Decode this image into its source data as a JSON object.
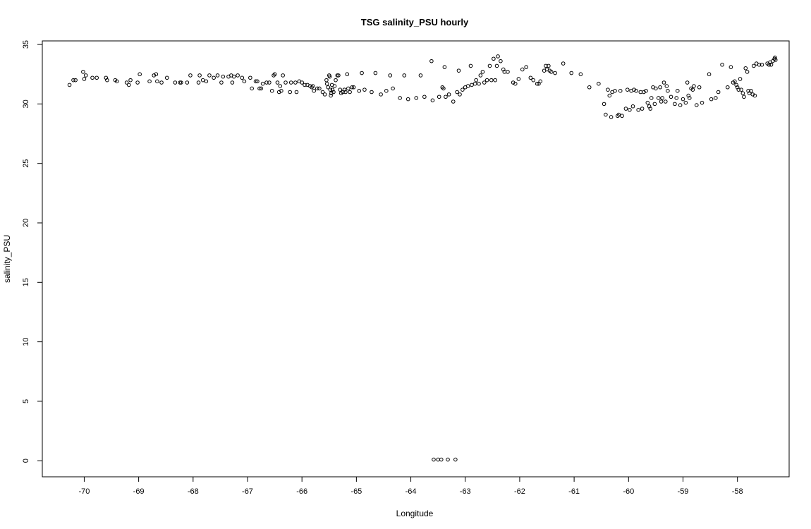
{
  "chart_data": {
    "type": "scatter",
    "title": "TSG salinity_PSU hourly",
    "xlabel": "Longitude",
    "ylabel": "salinity_PSU",
    "xlim": [
      -70.77,
      -57.05
    ],
    "ylim": [
      -1.35,
      35.3
    ],
    "xticks": [
      -70,
      -69,
      -68,
      -67,
      -66,
      -65,
      -64,
      -63,
      -62,
      -61,
      -60,
      -59,
      -58
    ],
    "xtick_labels": [
      "-70",
      "-69",
      "-68",
      "-67",
      "-66",
      "-65",
      "-64",
      "-63",
      "-62",
      "-61",
      "-60",
      "-59",
      "-58"
    ],
    "yticks": [
      0,
      5,
      10,
      15,
      20,
      25,
      30,
      35
    ],
    "ytick_labels": [
      "0",
      "5",
      "10",
      "15",
      "20",
      "25",
      "30",
      "35"
    ],
    "grid": false,
    "marker": "open-circle",
    "marker_color": "#000000",
    "points": [
      [
        -70.27,
        31.6
      ],
      [
        -70.2,
        32.0
      ],
      [
        -70.16,
        32.0
      ],
      [
        -70.02,
        32.7
      ],
      [
        -70.0,
        32.1
      ],
      [
        -69.97,
        32.4
      ],
      [
        -69.85,
        32.2
      ],
      [
        -69.77,
        32.2
      ],
      [
        -69.6,
        32.2
      ],
      [
        -69.58,
        32.0
      ],
      [
        -69.43,
        32.0
      ],
      [
        -69.4,
        31.9
      ],
      [
        -69.22,
        31.8
      ],
      [
        -69.18,
        31.6
      ],
      [
        -69.15,
        32.0
      ],
      [
        -69.02,
        31.8
      ],
      [
        -68.98,
        32.5
      ],
      [
        -68.8,
        31.9
      ],
      [
        -68.72,
        32.4
      ],
      [
        -68.68,
        32.5
      ],
      [
        -68.66,
        31.9
      ],
      [
        -68.58,
        31.8
      ],
      [
        -68.48,
        32.2
      ],
      [
        -68.33,
        31.8
      ],
      [
        -68.24,
        31.8
      ],
      [
        -68.22,
        31.8
      ],
      [
        -68.11,
        31.8
      ],
      [
        -68.05,
        32.4
      ],
      [
        -67.9,
        31.8
      ],
      [
        -67.88,
        32.4
      ],
      [
        -67.82,
        32.0
      ],
      [
        -67.76,
        31.9
      ],
      [
        -67.7,
        32.4
      ],
      [
        -67.62,
        32.2
      ],
      [
        -67.55,
        32.4
      ],
      [
        -67.48,
        31.8
      ],
      [
        -67.45,
        32.3
      ],
      [
        -67.35,
        32.3
      ],
      [
        -67.3,
        32.4
      ],
      [
        -67.28,
        31.8
      ],
      [
        -67.25,
        32.3
      ],
      [
        -67.18,
        32.4
      ],
      [
        -67.1,
        32.2
      ],
      [
        -67.06,
        31.9
      ],
      [
        -66.95,
        32.2
      ],
      [
        -66.92,
        31.3
      ],
      [
        -66.85,
        31.9
      ],
      [
        -66.82,
        31.9
      ],
      [
        -66.78,
        31.3
      ],
      [
        -66.75,
        31.3
      ],
      [
        -66.72,
        31.7
      ],
      [
        -66.65,
        31.8
      ],
      [
        -66.6,
        31.8
      ],
      [
        -66.55,
        31.1
      ],
      [
        -66.52,
        32.4
      ],
      [
        -66.5,
        32.5
      ],
      [
        -66.45,
        31.8
      ],
      [
        -66.42,
        31.0
      ],
      [
        -66.4,
        31.5
      ],
      [
        -66.38,
        31.1
      ],
      [
        -66.35,
        32.4
      ],
      [
        -66.3,
        31.8
      ],
      [
        -66.22,
        31.0
      ],
      [
        -66.2,
        31.8
      ],
      [
        -66.12,
        31.8
      ],
      [
        -66.1,
        31.0
      ],
      [
        -66.05,
        31.9
      ],
      [
        -66.0,
        31.8
      ],
      [
        -65.95,
        31.6
      ],
      [
        -65.9,
        31.6
      ],
      [
        -65.85,
        31.5
      ],
      [
        -65.82,
        31.4
      ],
      [
        -65.8,
        31.5
      ],
      [
        -65.78,
        31.1
      ],
      [
        -65.72,
        31.3
      ],
      [
        -65.68,
        31.3
      ],
      [
        -65.62,
        31.0
      ],
      [
        -65.58,
        30.8
      ],
      [
        -65.55,
        32.0
      ],
      [
        -65.54,
        31.7
      ],
      [
        -65.52,
        31.4
      ],
      [
        -65.5,
        32.4
      ],
      [
        -65.49,
        32.3
      ],
      [
        -65.48,
        31.2
      ],
      [
        -65.47,
        30.7
      ],
      [
        -65.46,
        30.9
      ],
      [
        -65.45,
        31.6
      ],
      [
        -65.44,
        31.2
      ],
      [
        -65.42,
        31.0
      ],
      [
        -65.4,
        31.5
      ],
      [
        -65.38,
        32.0
      ],
      [
        -65.35,
        32.4
      ],
      [
        -65.33,
        32.4
      ],
      [
        -65.3,
        31.2
      ],
      [
        -65.28,
        30.9
      ],
      [
        -65.25,
        31.0
      ],
      [
        -65.22,
        31.2
      ],
      [
        -65.2,
        31.0
      ],
      [
        -65.17,
        32.5
      ],
      [
        -65.15,
        31.3
      ],
      [
        -65.12,
        31.0
      ],
      [
        -65.08,
        31.4
      ],
      [
        -65.05,
        31.4
      ],
      [
        -64.95,
        31.1
      ],
      [
        -64.9,
        32.6
      ],
      [
        -64.85,
        31.2
      ],
      [
        -64.72,
        31.0
      ],
      [
        -64.65,
        32.6
      ],
      [
        -64.55,
        30.8
      ],
      [
        -64.45,
        31.1
      ],
      [
        -64.38,
        32.4
      ],
      [
        -64.33,
        31.3
      ],
      [
        -64.2,
        30.5
      ],
      [
        -64.12,
        32.4
      ],
      [
        -64.05,
        30.4
      ],
      [
        -63.9,
        30.5
      ],
      [
        -63.82,
        32.4
      ],
      [
        -63.75,
        30.6
      ],
      [
        -63.62,
        33.6
      ],
      [
        -63.6,
        30.3
      ],
      [
        -63.58,
        0.1
      ],
      [
        -63.5,
        0.1
      ],
      [
        -63.48,
        30.6
      ],
      [
        -63.44,
        0.1
      ],
      [
        -63.42,
        31.4
      ],
      [
        -63.4,
        31.3
      ],
      [
        -63.38,
        33.1
      ],
      [
        -63.36,
        30.6
      ],
      [
        -63.32,
        0.1
      ],
      [
        -63.3,
        30.8
      ],
      [
        -63.22,
        30.2
      ],
      [
        -63.18,
        0.1
      ],
      [
        -63.15,
        31.0
      ],
      [
        -63.12,
        32.8
      ],
      [
        -63.1,
        30.8
      ],
      [
        -63.05,
        31.2
      ],
      [
        -63.0,
        31.4
      ],
      [
        -62.95,
        31.5
      ],
      [
        -62.9,
        33.2
      ],
      [
        -62.88,
        31.6
      ],
      [
        -62.82,
        31.7
      ],
      [
        -62.8,
        32.0
      ],
      [
        -62.75,
        31.7
      ],
      [
        -62.72,
        32.4
      ],
      [
        -62.68,
        32.7
      ],
      [
        -62.65,
        31.8
      ],
      [
        -62.6,
        32.0
      ],
      [
        -62.55,
        33.2
      ],
      [
        -62.52,
        32.0
      ],
      [
        -62.48,
        33.8
      ],
      [
        -62.45,
        32.0
      ],
      [
        -62.42,
        33.2
      ],
      [
        -62.4,
        34.0
      ],
      [
        -62.35,
        33.6
      ],
      [
        -62.3,
        32.9
      ],
      [
        -62.28,
        32.7
      ],
      [
        -62.22,
        32.7
      ],
      [
        -62.12,
        31.8
      ],
      [
        -62.08,
        31.7
      ],
      [
        -62.02,
        32.1
      ],
      [
        -61.95,
        32.9
      ],
      [
        -61.88,
        33.1
      ],
      [
        -61.8,
        32.2
      ],
      [
        -61.75,
        32.0
      ],
      [
        -61.68,
        31.7
      ],
      [
        -61.65,
        31.7
      ],
      [
        -61.62,
        31.9
      ],
      [
        -61.55,
        32.8
      ],
      [
        -61.52,
        33.2
      ],
      [
        -61.5,
        32.9
      ],
      [
        -61.47,
        33.2
      ],
      [
        -61.45,
        32.8
      ],
      [
        -61.42,
        32.7
      ],
      [
        -61.35,
        32.6
      ],
      [
        -61.2,
        33.4
      ],
      [
        -61.05,
        32.6
      ],
      [
        -60.88,
        32.5
      ],
      [
        -60.72,
        31.4
      ],
      [
        -60.55,
        31.7
      ],
      [
        -60.45,
        30.0
      ],
      [
        -60.42,
        29.1
      ],
      [
        -60.38,
        31.2
      ],
      [
        -60.35,
        30.7
      ],
      [
        -60.32,
        28.9
      ],
      [
        -60.3,
        31.0
      ],
      [
        -60.25,
        31.1
      ],
      [
        -60.2,
        29.0
      ],
      [
        -60.18,
        29.1
      ],
      [
        -60.15,
        31.1
      ],
      [
        -60.12,
        29.0
      ],
      [
        -60.05,
        29.6
      ],
      [
        -60.02,
        31.2
      ],
      [
        -59.98,
        29.5
      ],
      [
        -59.95,
        31.1
      ],
      [
        -59.92,
        29.8
      ],
      [
        -59.9,
        31.2
      ],
      [
        -59.86,
        31.1
      ],
      [
        -59.82,
        29.5
      ],
      [
        -59.78,
        31.0
      ],
      [
        -59.75,
        29.6
      ],
      [
        -59.72,
        31.0
      ],
      [
        -59.68,
        31.1
      ],
      [
        -59.65,
        30.1
      ],
      [
        -59.62,
        29.8
      ],
      [
        -59.6,
        29.6
      ],
      [
        -59.58,
        30.5
      ],
      [
        -59.55,
        31.4
      ],
      [
        -59.52,
        30.0
      ],
      [
        -59.5,
        31.3
      ],
      [
        -59.45,
        30.5
      ],
      [
        -59.42,
        31.4
      ],
      [
        -59.4,
        30.2
      ],
      [
        -59.38,
        30.5
      ],
      [
        -59.35,
        31.8
      ],
      [
        -59.32,
        30.2
      ],
      [
        -59.3,
        31.5
      ],
      [
        -59.28,
        31.1
      ],
      [
        -59.22,
        30.6
      ],
      [
        -59.15,
        30.0
      ],
      [
        -59.12,
        30.5
      ],
      [
        -59.1,
        31.1
      ],
      [
        -59.05,
        29.9
      ],
      [
        -59.0,
        30.4
      ],
      [
        -58.95,
        30.1
      ],
      [
        -58.92,
        31.8
      ],
      [
        -58.9,
        30.7
      ],
      [
        -58.88,
        30.5
      ],
      [
        -58.85,
        31.3
      ],
      [
        -58.82,
        31.2
      ],
      [
        -58.8,
        31.5
      ],
      [
        -58.75,
        29.9
      ],
      [
        -58.7,
        31.4
      ],
      [
        -58.65,
        30.1
      ],
      [
        -58.52,
        32.5
      ],
      [
        -58.48,
        30.4
      ],
      [
        -58.4,
        30.5
      ],
      [
        -58.35,
        31.0
      ],
      [
        -58.28,
        33.3
      ],
      [
        -58.18,
        31.4
      ],
      [
        -58.12,
        33.1
      ],
      [
        -58.08,
        31.8
      ],
      [
        -58.05,
        31.9
      ],
      [
        -58.02,
        31.6
      ],
      [
        -58.0,
        31.4
      ],
      [
        -57.98,
        31.2
      ],
      [
        -57.95,
        32.1
      ],
      [
        -57.93,
        31.2
      ],
      [
        -57.9,
        30.9
      ],
      [
        -57.88,
        30.6
      ],
      [
        -57.85,
        33.0
      ],
      [
        -57.82,
        32.7
      ],
      [
        -57.8,
        31.1
      ],
      [
        -57.78,
        30.9
      ],
      [
        -57.75,
        31.1
      ],
      [
        -57.72,
        30.8
      ],
      [
        -57.7,
        33.2
      ],
      [
        -57.68,
        30.7
      ],
      [
        -57.65,
        33.4
      ],
      [
        -57.6,
        33.3
      ],
      [
        -57.55,
        33.3
      ],
      [
        -57.45,
        33.4
      ],
      [
        -57.42,
        33.3
      ],
      [
        -57.4,
        33.5
      ],
      [
        -57.38,
        33.3
      ],
      [
        -57.35,
        33.6
      ],
      [
        -57.32,
        33.8
      ],
      [
        -57.31,
        33.9
      ],
      [
        -57.3,
        33.7
      ]
    ]
  }
}
